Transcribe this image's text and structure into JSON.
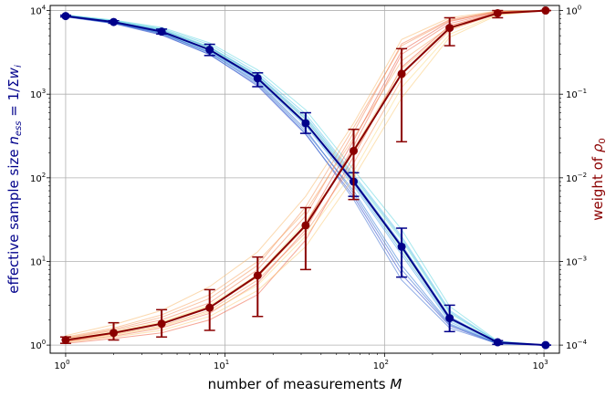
{
  "chart_data": {
    "type": "line",
    "xlabel": "number of measurements M",
    "ylabel_left": "effective sample size n_ess = 1/Σw_i",
    "ylabel_right": "weight of ρ0",
    "x_scale": "log",
    "y_left_scale": "log",
    "y_right_scale": "log",
    "xlim": [
      0.8,
      1250
    ],
    "ylim_left": [
      0.8,
      11500
    ],
    "ylim_right": [
      8e-05,
      1.15
    ],
    "grid": true,
    "x_ticks": [
      {
        "v": 1,
        "b": "10",
        "e": "0"
      },
      {
        "v": 10,
        "b": "10",
        "e": "1"
      },
      {
        "v": 100,
        "b": "10",
        "e": "2"
      },
      {
        "v": 1000,
        "b": "10",
        "e": "3"
      }
    ],
    "y_left_ticks": [
      {
        "v": 1,
        "b": "10",
        "e": "0"
      },
      {
        "v": 10,
        "b": "10",
        "e": "1"
      },
      {
        "v": 100,
        "b": "10",
        "e": "2"
      },
      {
        "v": 1000,
        "b": "10",
        "e": "3"
      },
      {
        "v": 10000,
        "b": "10",
        "e": "4"
      }
    ],
    "y_right_ticks": [
      {
        "v": 0.0001,
        "b": "10",
        "e": "−4"
      },
      {
        "v": 0.001,
        "b": "10",
        "e": "−3"
      },
      {
        "v": 0.01,
        "b": "10",
        "e": "−2"
      },
      {
        "v": 0.1,
        "b": "10",
        "e": "−1"
      },
      {
        "v": 1,
        "b": "10",
        "e": "0"
      }
    ],
    "x": [
      1,
      2,
      4,
      8,
      16,
      32,
      64,
      128,
      256,
      512,
      1024
    ],
    "ess_mean": {
      "color": "#00008b",
      "values": [
        8600,
        7300,
        5600,
        3400,
        1550,
        450,
        90,
        15,
        2.1,
        1.08,
        1.0
      ],
      "err_low": [
        8400,
        7050,
        5250,
        2900,
        1230,
        340,
        60,
        6.5,
        1.45,
        1.02,
        1.0
      ],
      "err_high": [
        8800,
        7550,
        6000,
        3950,
        1800,
        600,
        115,
        25,
        3.0,
        1.13,
        1.0
      ]
    },
    "weight_mean": {
      "color": "#8b0000",
      "values": [
        0.000115,
        0.00014,
        0.00018,
        0.00028,
        0.00068,
        0.0027,
        0.021,
        0.175,
        0.62,
        0.93,
        1.0
      ],
      "err_low": [
        0.000105,
        0.000115,
        0.000125,
        0.00015,
        0.00022,
        0.0008,
        0.0055,
        0.027,
        0.38,
        0.82,
        1.0
      ],
      "err_high": [
        0.000125,
        0.000185,
        0.000265,
        0.00046,
        0.00113,
        0.0044,
        0.038,
        0.35,
        0.82,
        1.0,
        1.0
      ]
    },
    "ess_runs": [
      {
        "color": "#1f3cc8",
        "values": [
          8400,
          7000,
          5100,
          3000,
          1250,
          330,
          60,
          7,
          1.7,
          1.03,
          1.0
        ]
      },
      {
        "color": "#2e74d6",
        "values": [
          8500,
          7100,
          5300,
          3100,
          1350,
          360,
          70,
          9,
          1.8,
          1.05,
          1.0
        ]
      },
      {
        "color": "#3c8ee0",
        "values": [
          8700,
          7400,
          5800,
          3600,
          1650,
          500,
          95,
          16,
          2.2,
          1.07,
          1.0
        ]
      },
      {
        "color": "#4aa8e6",
        "values": [
          8600,
          7250,
          5500,
          3300,
          1450,
          420,
          80,
          12,
          1.9,
          1.06,
          1.0
        ]
      },
      {
        "color": "#56c2e8",
        "values": [
          8800,
          7600,
          6100,
          3900,
          1800,
          580,
          110,
          20,
          2.6,
          1.1,
          1.0
        ]
      },
      {
        "color": "#5fd6e0",
        "values": [
          8900,
          7700,
          6300,
          4100,
          1950,
          650,
          125,
          24,
          2.9,
          1.12,
          1.0
        ]
      },
      {
        "color": "#6ee6cc",
        "values": [
          8750,
          7500,
          6000,
          3700,
          1700,
          520,
          100,
          18,
          2.4,
          1.09,
          1.0
        ]
      },
      {
        "color": "#80eeb4",
        "values": [
          8650,
          7350,
          5700,
          3500,
          1600,
          470,
          90,
          14,
          2.1,
          1.08,
          1.0
        ]
      },
      {
        "color": "#3468d0",
        "values": [
          8450,
          7050,
          5200,
          2950,
          1300,
          340,
          55,
          6,
          1.6,
          1.04,
          1.0
        ]
      },
      {
        "color": "#44a0e4",
        "values": [
          8550,
          7200,
          5400,
          3200,
          1500,
          440,
          85,
          13,
          2.0,
          1.07,
          1.0
        ]
      },
      {
        "color": "#52b8e8",
        "values": [
          8700,
          7450,
          5900,
          3650,
          1700,
          540,
          105,
          19,
          2.5,
          1.09,
          1.0
        ]
      },
      {
        "color": "#2a60cc",
        "values": [
          8500,
          7150,
          5350,
          3150,
          1400,
          380,
          65,
          8,
          1.75,
          1.05,
          1.0
        ]
      }
    ],
    "weight_runs": [
      {
        "color": "#ee5030",
        "values": [
          0.000105,
          0.00012,
          0.00014,
          0.0002,
          0.0004,
          0.0018,
          0.018,
          0.21,
          0.66,
          0.95,
          1.0
        ]
      },
      {
        "color": "#f06040",
        "values": [
          0.00011,
          0.000128,
          0.00016,
          0.00024,
          0.00055,
          0.0024,
          0.024,
          0.3,
          0.7,
          0.96,
          1.0
        ]
      },
      {
        "color": "#f47848",
        "values": [
          0.00012,
          0.00015,
          0.0002,
          0.00032,
          0.0008,
          0.0035,
          0.035,
          0.4,
          0.78,
          0.98,
          1.0
        ]
      },
      {
        "color": "#f68c50",
        "values": [
          0.000115,
          0.000135,
          0.00017,
          0.00026,
          0.0006,
          0.0022,
          0.015,
          0.15,
          0.58,
          0.92,
          1.0
        ]
      },
      {
        "color": "#f8a058",
        "values": [
          0.000125,
          0.00016,
          0.00023,
          0.0004,
          0.001,
          0.004,
          0.03,
          0.25,
          0.64,
          0.94,
          1.0
        ]
      },
      {
        "color": "#f9b460",
        "values": [
          0.00013,
          0.000175,
          0.00026,
          0.0005,
          0.0013,
          0.006,
          0.045,
          0.45,
          0.82,
          0.99,
          1.0
        ]
      },
      {
        "color": "#fbc86c",
        "values": [
          0.000108,
          0.000125,
          0.00015,
          0.00022,
          0.00045,
          0.0015,
          0.01,
          0.09,
          0.48,
          0.88,
          1.0
        ]
      },
      {
        "color": "#fcd878",
        "values": [
          0.000112,
          0.000132,
          0.000165,
          0.00025,
          0.00052,
          0.002,
          0.012,
          0.12,
          0.52,
          0.9,
          1.0
        ]
      },
      {
        "color": "#fde488",
        "values": [
          0.000118,
          0.000145,
          0.00019,
          0.0003,
          0.0007,
          0.003,
          0.02,
          0.18,
          0.6,
          0.93,
          1.0
        ]
      },
      {
        "color": "#e84830",
        "values": [
          0.00011,
          0.000138,
          0.00018,
          0.00028,
          0.00066,
          0.0028,
          0.028,
          0.33,
          0.74,
          0.97,
          1.0
        ]
      },
      {
        "color": "#f38a4c",
        "values": [
          0.000122,
          0.000155,
          0.000215,
          0.00036,
          0.0009,
          0.0045,
          0.04,
          0.38,
          0.76,
          0.97,
          1.0
        ]
      },
      {
        "color": "#fab868",
        "values": [
          0.000114,
          0.000142,
          0.000185,
          0.00029,
          0.00065,
          0.0026,
          0.022,
          0.2,
          0.62,
          0.94,
          1.0
        ]
      }
    ]
  }
}
